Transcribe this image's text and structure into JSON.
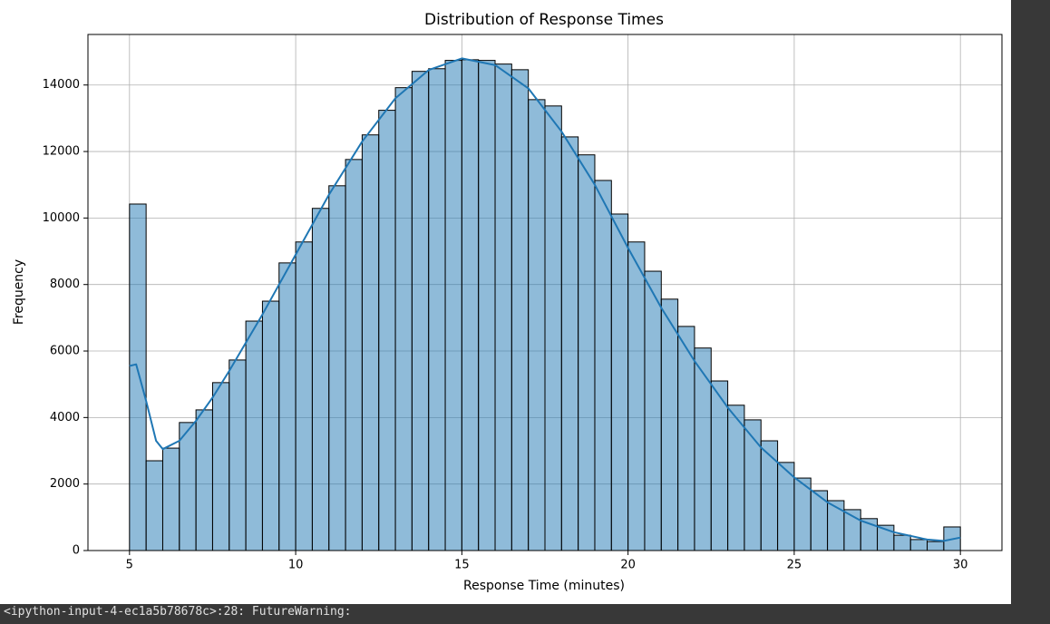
{
  "chart_data": {
    "type": "histogram",
    "title": "Distribution of Response Times",
    "xlabel": "Response Time (minutes)",
    "ylabel": "Frequency",
    "bins": [
      5,
      5.5,
      6,
      6.5,
      7,
      7.5,
      8,
      8.5,
      9,
      9.5,
      10,
      10.5,
      11,
      11.5,
      12,
      12.5,
      13,
      13.5,
      14,
      14.5,
      15,
      15.5,
      16,
      16.5,
      17,
      17.5,
      18,
      18.5,
      19,
      19.5,
      20,
      20.5,
      21,
      21.5,
      22,
      22.5,
      23,
      23.5,
      24,
      24.5,
      25,
      25.5,
      26,
      26.5,
      27,
      27.5,
      28,
      28.5,
      29,
      29.5,
      30
    ],
    "values": [
      10420,
      2700,
      3080,
      3850,
      4230,
      5050,
      5730,
      6900,
      7500,
      8650,
      9280,
      10290,
      10970,
      11760,
      12500,
      13240,
      13920,
      14410,
      14490,
      14740,
      14760,
      14740,
      14630,
      14460,
      13560,
      13370,
      12440,
      11900,
      11130,
      10120,
      9280,
      8400,
      7560,
      6740,
      6090,
      5100,
      4370,
      3930,
      3300,
      2650,
      2180,
      1800,
      1500,
      1230,
      960,
      760,
      460,
      330,
      270,
      710
    ],
    "color": "#1f77b4",
    "bar_alpha": 0.5,
    "edgecolor": "#000000",
    "kde": {
      "color": "#1f77b4",
      "x": [
        5,
        5.2,
        5.5,
        5.8,
        6,
        6.5,
        7,
        7.5,
        8,
        9,
        10,
        11,
        12,
        13,
        14,
        15,
        16,
        17,
        18,
        19,
        20,
        21,
        22,
        23,
        24,
        25,
        26,
        27,
        28,
        29,
        29.5,
        30
      ],
      "values": [
        5550,
        5600,
        4500,
        3300,
        3050,
        3300,
        3900,
        4600,
        5400,
        7100,
        8900,
        10700,
        12300,
        13600,
        14450,
        14800,
        14600,
        13900,
        12600,
        11000,
        9100,
        7300,
        5700,
        4300,
        3100,
        2200,
        1450,
        900,
        550,
        330,
        290,
        390
      ]
    },
    "xlim": [
      3.75,
      31.25
    ],
    "xticks": [
      5,
      10,
      15,
      20,
      25,
      30
    ],
    "ylim": [
      0,
      15520
    ],
    "yticks": [
      0,
      2000,
      4000,
      6000,
      8000,
      10000,
      12000,
      14000
    ],
    "grid": true
  },
  "console": {
    "warning": "<ipython-input-4-ec1a5b78678c>:28: FutureWarning:"
  }
}
